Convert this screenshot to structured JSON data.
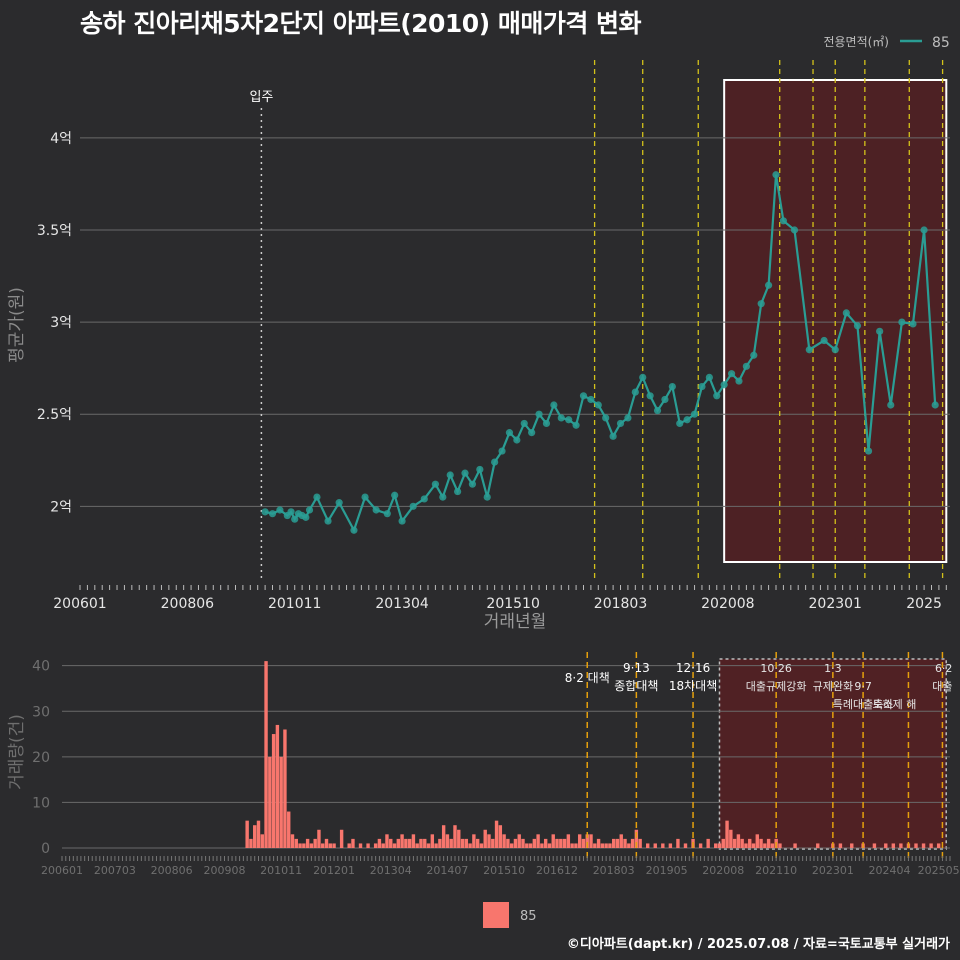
{
  "title": "송하 진아리채5차2단지 아파트(2010) 매매가격 변화",
  "footer": "©디아파트(dapt.kr) / 2025.07.08 / 자료=국토교통부 실거래가",
  "colors": {
    "background": "#2b2b2d",
    "price_series": "#2a9d94",
    "volume_bar": "#f8766d",
    "policy_line": "#d4c21a",
    "policy_line_bottom": "#e5a00d",
    "highlight_fill": "#5a1f22",
    "gridline": "#6a6a6a"
  },
  "chart_data": [
    {
      "type": "line",
      "title": "송하 진아리채5차2단지 아파트(2010) 매매가격 변화",
      "xlabel": "거래년월",
      "ylabel": "평균가(원)",
      "legend": {
        "title": "전용면적(㎡)",
        "entries": [
          "85"
        ],
        "placement": "top-right"
      },
      "x_ticks": [
        "200601",
        "200806",
        "201011",
        "201304",
        "201510",
        "201803",
        "202008",
        "202301",
        "2025"
      ],
      "y_ticks": [
        "2억",
        "2.5억",
        "3억",
        "3.5억",
        "4억"
      ],
      "y_tick_values": [
        2.0,
        2.5,
        3.0,
        3.5,
        4.0
      ],
      "ylim": [
        1.6,
        4.45
      ],
      "xlim": [
        "2006-01",
        "2025-08"
      ],
      "grid": "horizontal",
      "annotation": {
        "label": "입주",
        "date": "2010-02"
      },
      "policy_dates": [
        "2017-08",
        "2018-09",
        "2019-12",
        "2021-10",
        "2022-07",
        "2023-01",
        "2023-09",
        "2024-09",
        "2025-06"
      ],
      "highlight_range": [
        "2020-07",
        "2025-07"
      ],
      "series": [
        {
          "name": "85",
          "x": [
            "2010-03",
            "2010-05",
            "2010-07",
            "2010-09",
            "2010-10",
            "2010-11",
            "2010-12",
            "2011-01",
            "2011-02",
            "2011-03",
            "2011-05",
            "2011-08",
            "2011-11",
            "2012-03",
            "2012-06",
            "2012-09",
            "2012-12",
            "2013-02",
            "2013-04",
            "2013-07",
            "2013-10",
            "2014-01",
            "2014-03",
            "2014-05",
            "2014-07",
            "2014-09",
            "2014-11",
            "2015-01",
            "2015-03",
            "2015-05",
            "2015-07",
            "2015-09",
            "2015-11",
            "2016-01",
            "2016-03",
            "2016-05",
            "2016-07",
            "2016-09",
            "2016-11",
            "2017-01",
            "2017-03",
            "2017-05",
            "2017-07",
            "2017-09",
            "2017-11",
            "2018-01",
            "2018-03",
            "2018-05",
            "2018-07",
            "2018-09",
            "2018-11",
            "2019-01",
            "2019-03",
            "2019-05",
            "2019-07",
            "2019-09",
            "2019-11",
            "2020-01",
            "2020-03",
            "2020-05",
            "2020-07",
            "2020-09",
            "2020-11",
            "2021-01",
            "2021-03",
            "2021-05",
            "2021-07",
            "2021-09",
            "2021-11",
            "2022-02",
            "2022-06",
            "2022-10",
            "2023-01",
            "2023-04",
            "2023-07",
            "2023-10",
            "2024-01",
            "2024-04",
            "2024-07",
            "2024-10",
            "2025-01",
            "2025-04"
          ],
          "y": [
            1.97,
            1.96,
            1.98,
            1.95,
            1.97,
            1.93,
            1.96,
            1.95,
            1.94,
            1.98,
            2.05,
            1.92,
            2.02,
            1.87,
            2.05,
            1.98,
            1.96,
            2.06,
            1.92,
            2.0,
            2.04,
            2.12,
            2.05,
            2.17,
            2.08,
            2.18,
            2.12,
            2.2,
            2.05,
            2.24,
            2.3,
            2.4,
            2.36,
            2.45,
            2.4,
            2.5,
            2.45,
            2.55,
            2.48,
            2.47,
            2.44,
            2.6,
            2.58,
            2.55,
            2.48,
            2.38,
            2.45,
            2.48,
            2.62,
            2.7,
            2.6,
            2.52,
            2.58,
            2.65,
            2.45,
            2.47,
            2.5,
            2.65,
            2.7,
            2.6,
            2.66,
            2.72,
            2.68,
            2.76,
            2.82,
            3.1,
            3.2,
            3.8,
            3.55,
            3.5,
            2.85,
            2.9,
            2.85,
            3.05,
            2.98,
            2.3,
            2.95,
            2.55,
            3.0,
            2.99,
            3.5,
            2.55
          ]
        }
      ]
    },
    {
      "type": "bar",
      "ylabel": "거래량(건)",
      "x_ticks": [
        "200601",
        "200703",
        "200806",
        "200908",
        "201011",
        "201201",
        "201304",
        "201407",
        "201510",
        "201612",
        "201803",
        "201905",
        "202008",
        "202110",
        "202301",
        "202404",
        "202505"
      ],
      "y_ticks": [
        "0",
        "10",
        "20",
        "30",
        "40"
      ],
      "ylim": [
        0,
        43
      ],
      "legend": {
        "entries": [
          "85"
        ],
        "placement": "bottom"
      },
      "policy_labels": [
        {
          "date": "2017-08",
          "lines": [
            "8·2 대책"
          ]
        },
        {
          "date": "2018-09",
          "lines": [
            "9·13",
            "종합대책"
          ]
        },
        {
          "date": "2019-12",
          "lines": [
            "12·16",
            "18차대책"
          ]
        },
        {
          "date": "2021-10",
          "lines": [
            "10·26",
            "대출규제강화"
          ]
        },
        {
          "date": "2023-01",
          "lines": [
            "1·3",
            "규제완화"
          ]
        },
        {
          "date": "2023-09",
          "lines": [
            "9·7",
            "특례대출축소"
          ]
        },
        {
          "date": "2024-09",
          "lines": [
            "토허제 해"
          ]
        },
        {
          "date": "2025-06",
          "lines": [
            "6·2",
            "대출"
          ]
        }
      ],
      "highlight_range": [
        "2020-07",
        "2025-07"
      ],
      "series": [
        {
          "name": "85",
          "x": [
            "2010-02",
            "2010-03",
            "2010-04",
            "2010-05",
            "2010-06",
            "2010-07",
            "2010-08",
            "2010-09",
            "2010-10",
            "2010-11",
            "2010-12",
            "2011-01",
            "2011-02",
            "2011-03",
            "2011-04",
            "2011-05",
            "2011-06",
            "2011-07",
            "2011-08",
            "2011-09",
            "2011-10",
            "2011-11",
            "2011-12",
            "2012-01",
            "2012-03",
            "2012-05",
            "2012-06",
            "2012-08",
            "2012-10",
            "2012-12",
            "2013-01",
            "2013-02",
            "2013-03",
            "2013-04",
            "2013-05",
            "2013-06",
            "2013-07",
            "2013-08",
            "2013-09",
            "2013-10",
            "2013-11",
            "2013-12",
            "2014-01",
            "2014-02",
            "2014-03",
            "2014-04",
            "2014-05",
            "2014-06",
            "2014-07",
            "2014-08",
            "2014-09",
            "2014-10",
            "2014-11",
            "2014-12",
            "2015-01",
            "2015-02",
            "2015-03",
            "2015-04",
            "2015-05",
            "2015-06",
            "2015-07",
            "2015-08",
            "2015-09",
            "2015-10",
            "2015-11",
            "2015-12",
            "2016-01",
            "2016-02",
            "2016-03",
            "2016-04",
            "2016-05",
            "2016-06",
            "2016-07",
            "2016-08",
            "2016-09",
            "2016-10",
            "2016-11",
            "2016-12",
            "2017-01",
            "2017-02",
            "2017-03",
            "2017-04",
            "2017-05",
            "2017-06",
            "2017-07",
            "2017-08",
            "2017-09",
            "2017-10",
            "2017-11",
            "2017-12",
            "2018-01",
            "2018-02",
            "2018-03",
            "2018-04",
            "2018-05",
            "2018-06",
            "2018-07",
            "2018-08",
            "2018-09",
            "2018-10",
            "2018-12",
            "2019-02",
            "2019-04",
            "2019-06",
            "2019-08",
            "2019-10",
            "2019-12",
            "2020-02",
            "2020-04",
            "2020-06",
            "2020-07",
            "2020-08",
            "2020-09",
            "2020-10",
            "2020-11",
            "2020-12",
            "2021-01",
            "2021-02",
            "2021-03",
            "2021-04",
            "2021-05",
            "2021-06",
            "2021-07",
            "2021-08",
            "2021-09",
            "2021-10",
            "2021-11",
            "2022-03",
            "2022-09",
            "2023-01",
            "2023-03",
            "2023-06",
            "2023-09",
            "2023-12",
            "2024-03",
            "2024-05",
            "2024-07",
            "2024-09",
            "2024-11",
            "2025-01",
            "2025-03",
            "2025-05"
          ],
          "values": [
            6,
            2,
            5,
            6,
            3,
            41,
            20,
            25,
            27,
            20,
            26,
            8,
            3,
            2,
            1,
            1,
            2,
            1,
            2,
            4,
            1,
            2,
            1,
            1,
            4,
            1,
            2,
            1,
            1,
            1,
            2,
            1,
            3,
            2,
            1,
            2,
            3,
            2,
            2,
            3,
            1,
            2,
            2,
            1,
            3,
            1,
            2,
            5,
            3,
            2,
            5,
            4,
            2,
            2,
            1,
            3,
            2,
            1,
            4,
            3,
            2,
            6,
            5,
            3,
            2,
            1,
            2,
            3,
            2,
            1,
            1,
            2,
            3,
            1,
            2,
            1,
            3,
            2,
            2,
            2,
            3,
            1,
            1,
            3,
            2,
            3,
            3,
            1,
            2,
            1,
            1,
            1,
            2,
            2,
            3,
            2,
            1,
            2,
            4,
            2,
            1,
            1,
            1,
            1,
            2,
            1,
            2,
            1,
            2,
            1,
            1,
            2,
            6,
            4,
            2,
            3,
            2,
            1,
            2,
            1,
            3,
            2,
            1,
            2,
            1,
            2,
            1,
            1,
            1,
            1,
            1,
            1,
            1,
            1,
            1,
            1,
            1,
            1,
            1,
            1,
            1,
            1
          ]
        }
      ]
    }
  ]
}
